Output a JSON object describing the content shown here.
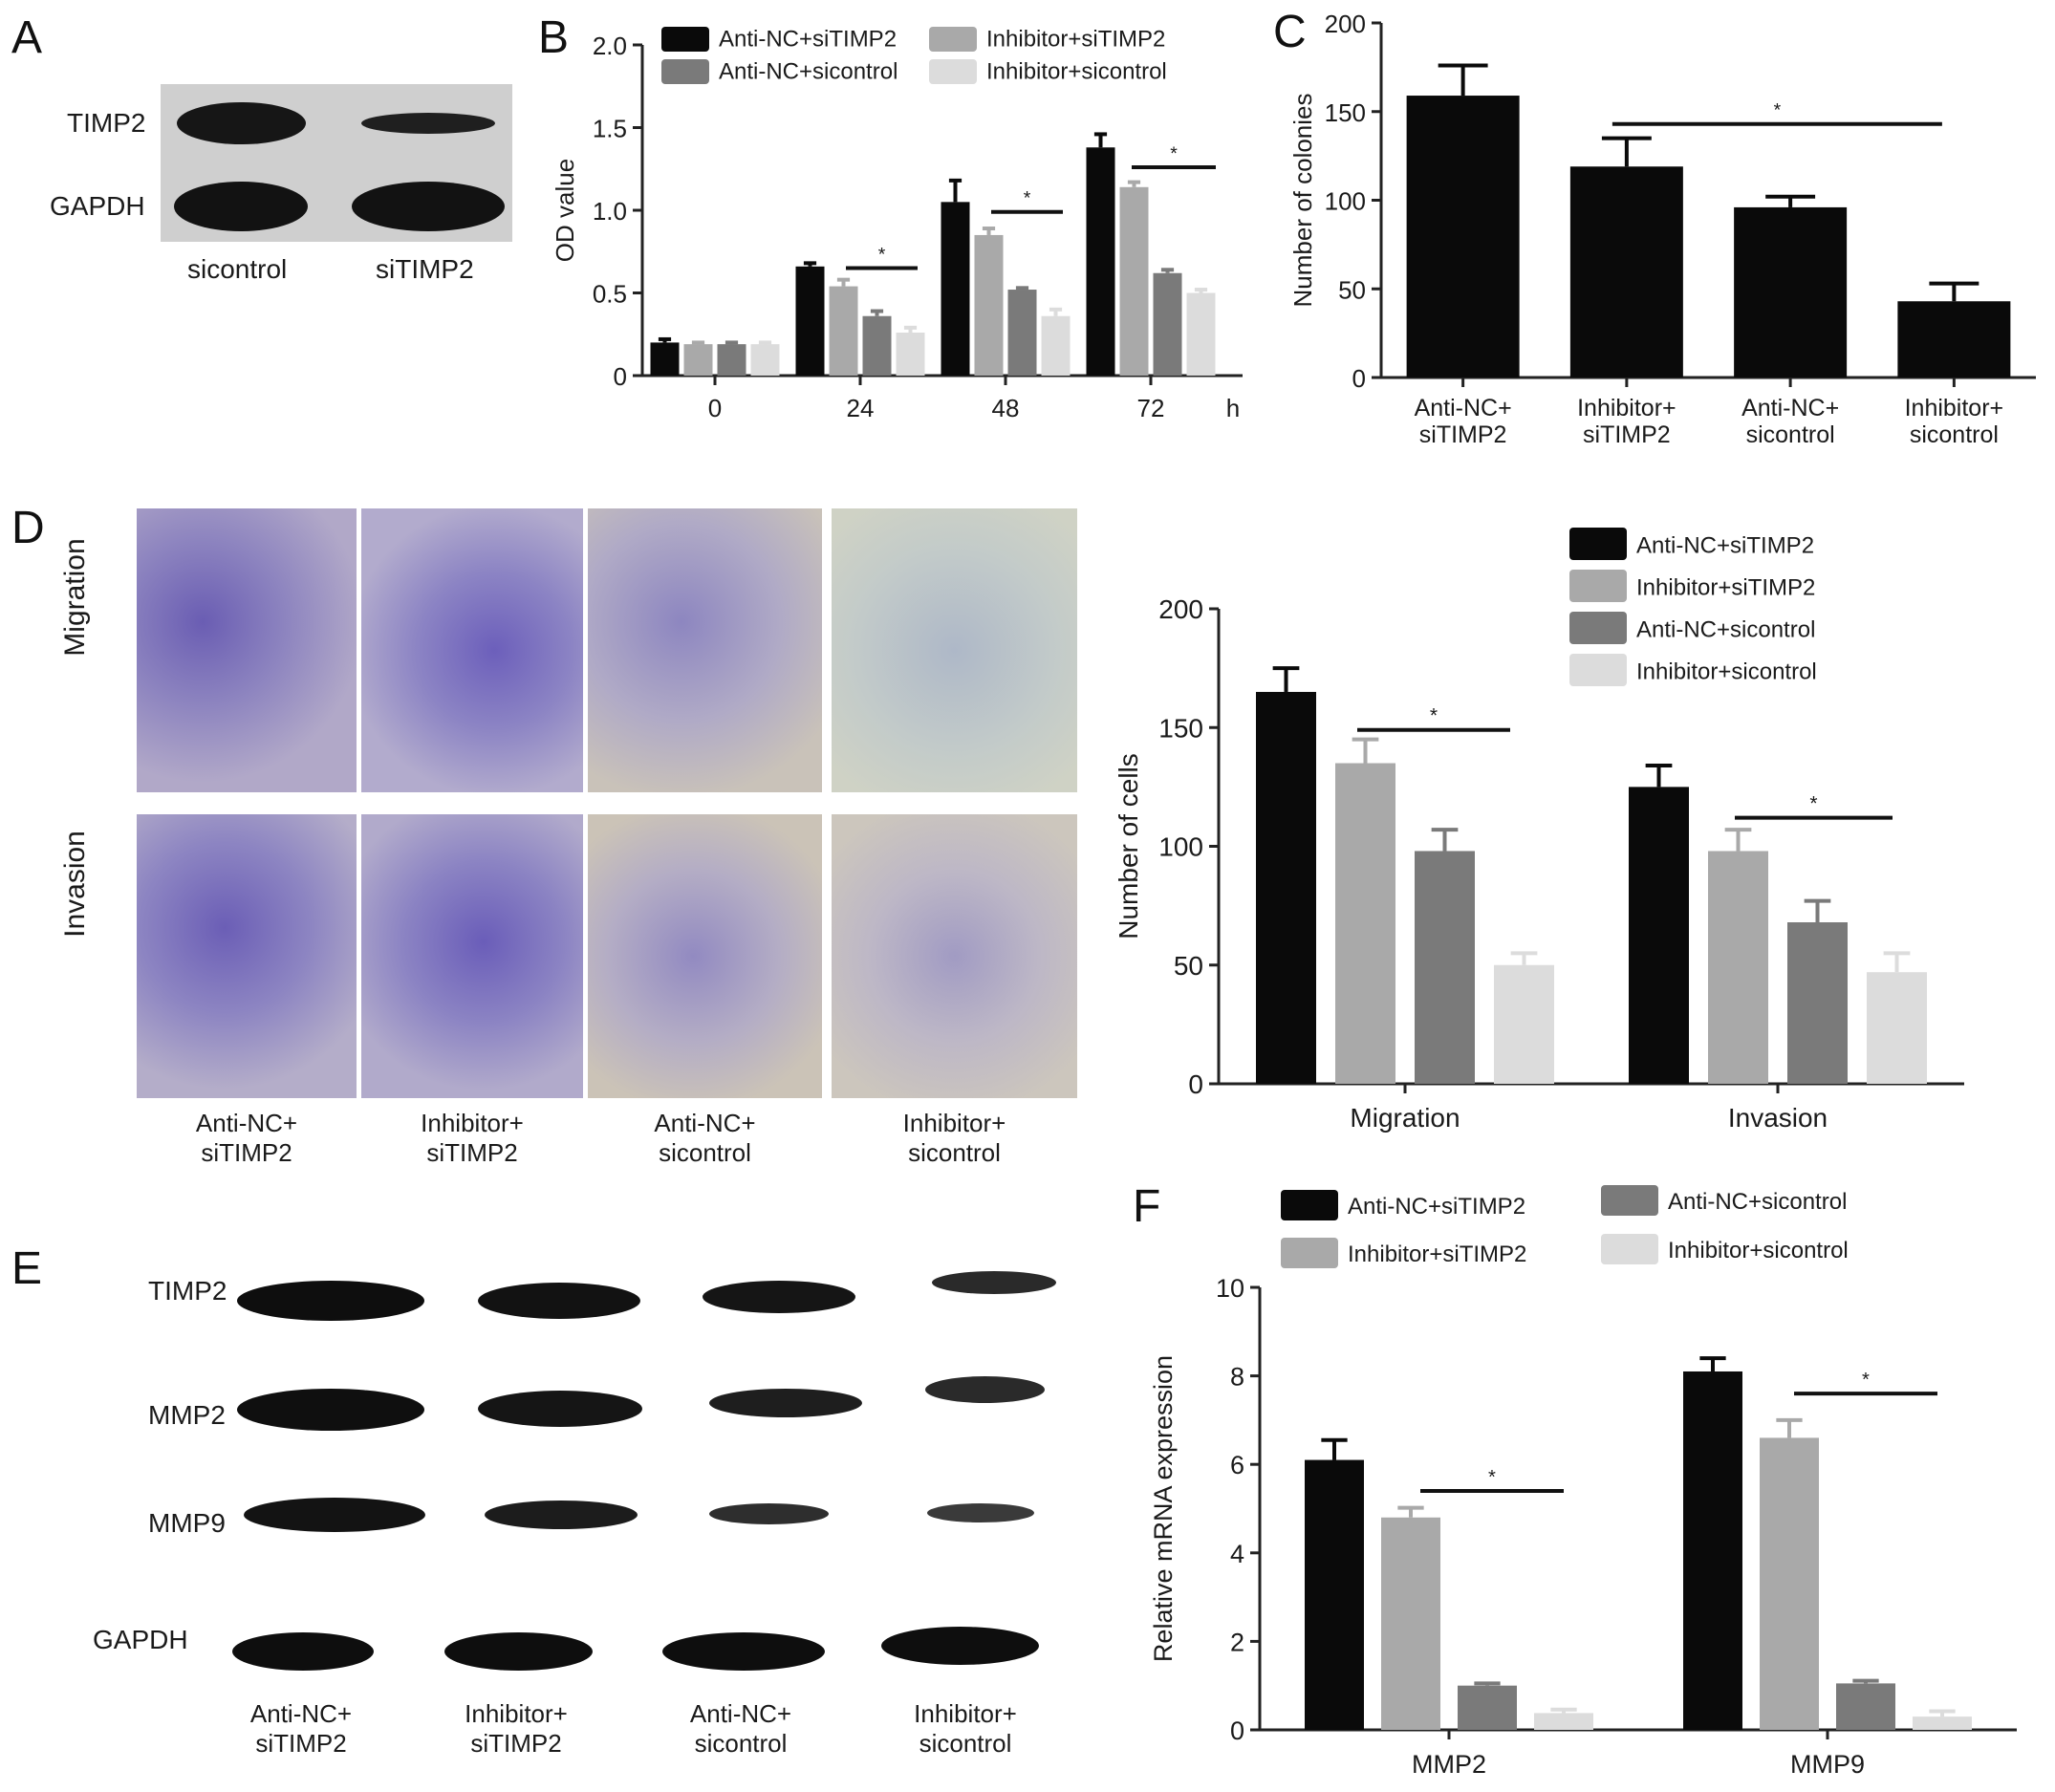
{
  "panels": {
    "A": "A",
    "B": "B",
    "C": "C",
    "D": "D",
    "E": "E",
    "F": "F"
  },
  "colors": {
    "black": "#0a0a0a",
    "lightgray": "#a9a9a9",
    "darkgray": "#7a7a7a",
    "palegray": "#dcdcdc",
    "stain": "#6f62b5"
  },
  "panelA": {
    "bands": [
      "TIMP2",
      "GAPDH"
    ],
    "lanes": [
      "sicontrol",
      "siTIMP2"
    ]
  },
  "panelD": {
    "rows": [
      "Migration",
      "Invasion"
    ],
    "columns": [
      [
        "Anti-NC+",
        "siTIMP2"
      ],
      [
        "Inhibitor+",
        "siTIMP2"
      ],
      [
        "Anti-NC+",
        "sicontrol"
      ],
      [
        "Inhibitor+",
        "sicontrol"
      ]
    ]
  },
  "panelE": {
    "bands": [
      "TIMP2",
      "MMP2",
      "MMP9",
      "GAPDH"
    ],
    "lanes": [
      [
        "Anti-NC+",
        "siTIMP2"
      ],
      [
        "Inhibitor+",
        "siTIMP2"
      ],
      [
        "Anti-NC+",
        "sicontrol"
      ],
      [
        "Inhibitor+",
        "sicontrol"
      ]
    ]
  },
  "chart_data": [
    {
      "panel": "B",
      "type": "bar",
      "ylabel": "OD value",
      "xunit": "h",
      "categories": [
        "0",
        "24",
        "48",
        "72"
      ],
      "ylim": [
        0,
        2.0
      ],
      "yticks": [
        "0",
        "0.5",
        "1.0",
        "1.5",
        "2.0"
      ],
      "series": [
        {
          "name": "Anti-NC+siTIMP2",
          "color": "#0a0a0a",
          "values": [
            0.2,
            0.66,
            1.05,
            1.38
          ],
          "errors": [
            0.02,
            0.02,
            0.13,
            0.08
          ]
        },
        {
          "name": "Inhibitor+siTIMP2",
          "color": "#a9a9a9",
          "values": [
            0.19,
            0.54,
            0.85,
            1.14
          ],
          "errors": [
            0.01,
            0.04,
            0.04,
            0.03
          ]
        },
        {
          "name": "Anti-NC+sicontrol",
          "color": "#7a7a7a",
          "values": [
            0.19,
            0.36,
            0.52,
            0.62
          ],
          "errors": [
            0.01,
            0.03,
            0.01,
            0.02
          ]
        },
        {
          "name": "Inhibitor+sicontrol",
          "color": "#dcdcdc",
          "values": [
            0.19,
            0.26,
            0.36,
            0.5
          ],
          "errors": [
            0.01,
            0.03,
            0.04,
            0.02
          ]
        }
      ],
      "annotations": [
        "*",
        "*",
        "*"
      ]
    },
    {
      "panel": "C",
      "type": "bar",
      "ylabel": "Number of colonies",
      "categories": [
        [
          "Anti-NC+",
          "siTIMP2"
        ],
        [
          "Inhibitor+",
          "siTIMP2"
        ],
        [
          "Anti-NC+",
          "sicontrol"
        ],
        [
          "Inhibitor+",
          "sicontrol"
        ]
      ],
      "ylim": [
        0,
        200
      ],
      "yticks": [
        "0",
        "50",
        "100",
        "150",
        "200"
      ],
      "values": [
        159,
        119,
        96,
        43
      ],
      "errors": [
        17,
        16,
        6,
        10
      ],
      "color": "#0a0a0a",
      "annotations": [
        "*"
      ]
    },
    {
      "panel": "D",
      "type": "bar",
      "ylabel": "Number of cells",
      "categories": [
        "Migration",
        "Invasion"
      ],
      "ylim": [
        0,
        200
      ],
      "yticks": [
        "0",
        "50",
        "100",
        "150",
        "200"
      ],
      "series": [
        {
          "name": "Anti-NC+siTIMP2",
          "color": "#0a0a0a",
          "values": [
            165,
            125
          ],
          "errors": [
            10,
            9
          ]
        },
        {
          "name": "Inhibitor+siTIMP2",
          "color": "#a9a9a9",
          "values": [
            135,
            98
          ],
          "errors": [
            10,
            9
          ]
        },
        {
          "name": "Anti-NC+sicontrol",
          "color": "#7a7a7a",
          "values": [
            98,
            68
          ],
          "errors": [
            9,
            9
          ]
        },
        {
          "name": "Inhibitor+sicontrol",
          "color": "#dcdcdc",
          "values": [
            50,
            47
          ],
          "errors": [
            5,
            8
          ]
        }
      ],
      "annotations": [
        "*",
        "*"
      ]
    },
    {
      "panel": "F",
      "type": "bar",
      "ylabel": "Relative mRNA expression",
      "categories": [
        "MMP2",
        "MMP9"
      ],
      "ylim": [
        0,
        10
      ],
      "yticks": [
        "0",
        "2",
        "4",
        "6",
        "8",
        "10"
      ],
      "series": [
        {
          "name": "Anti-NC+siTIMP2",
          "color": "#0a0a0a",
          "values": [
            6.1,
            8.1
          ],
          "errors": [
            0.45,
            0.3
          ]
        },
        {
          "name": "Inhibitor+siTIMP2",
          "color": "#a9a9a9",
          "values": [
            4.8,
            6.6
          ],
          "errors": [
            0.22,
            0.4
          ]
        },
        {
          "name": "Anti-NC+sicontrol",
          "color": "#7a7a7a",
          "values": [
            1.0,
            1.05
          ],
          "errors": [
            0.05,
            0.06
          ]
        },
        {
          "name": "Inhibitor+sicontrol",
          "color": "#dcdcdc",
          "values": [
            0.38,
            0.3
          ],
          "errors": [
            0.08,
            0.12
          ]
        }
      ],
      "annotations": [
        "*",
        "*"
      ]
    }
  ]
}
